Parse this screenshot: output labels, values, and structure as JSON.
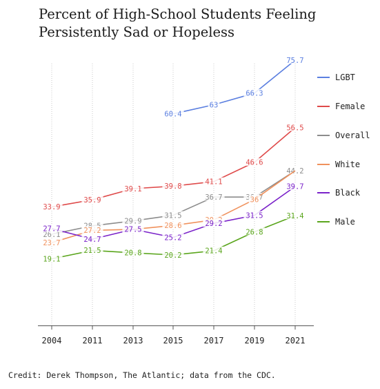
{
  "title": "Percent of High-School Students Feeling Persistently Sad or Hopeless",
  "credit": "Credit: Derek Thompson, The Atlantic; data from the CDC.",
  "chart_data": {
    "type": "line",
    "title": "Percent of High-School Students Feeling Persistently Sad or Hopeless",
    "xlabel": "",
    "ylabel": "",
    "categories": [
      "2004",
      "2011",
      "2013",
      "2015",
      "2017",
      "2019",
      "2021"
    ],
    "ylim": [
      0,
      80
    ],
    "grid": "vertical dotted lines at each year",
    "legend_position": "right",
    "series": [
      {
        "name": "LGBT",
        "color": "#5b7fe0",
        "values": [
          null,
          null,
          null,
          60.4,
          63,
          66.3,
          75.7
        ],
        "labels": [
          null,
          null,
          null,
          "60.4",
          "63",
          "66.3",
          "75.7"
        ]
      },
      {
        "name": "Female",
        "color": "#df4a4a",
        "values": [
          33.9,
          35.9,
          39.1,
          39.8,
          41.1,
          46.6,
          56.5
        ],
        "labels": [
          "33.9",
          "35.9",
          "39.1",
          "39.8",
          "41.1",
          "46.6",
          "56.5"
        ]
      },
      {
        "name": "Overall",
        "color": "#8c8c8c",
        "values": [
          26.1,
          28.5,
          29.9,
          31.5,
          36.7,
          36.7,
          44.2
        ],
        "labels": [
          "26.1",
          "28.5",
          "29.9",
          "31.5",
          "36.7",
          "36.7",
          "44.2"
        ]
      },
      {
        "name": "White",
        "color": "#f0915c",
        "values": [
          23.7,
          27.2,
          27.5,
          28.6,
          30.2,
          36,
          44.2
        ],
        "labels": [
          "23.7",
          "27.2",
          null,
          "28.6",
          "30.2",
          "36",
          null
        ]
      },
      {
        "name": "Black",
        "color": "#7a22c9",
        "values": [
          27.7,
          24.7,
          27.5,
          25.2,
          29.2,
          31.5,
          39.7
        ],
        "labels": [
          "27.7",
          "24.7",
          "27.5",
          "25.2",
          "29.2",
          "31.5",
          "39.7"
        ]
      },
      {
        "name": "Male",
        "color": "#5aa51c",
        "values": [
          19.1,
          21.5,
          20.8,
          20.2,
          21.4,
          26.8,
          31.4
        ],
        "labels": [
          "19.1",
          "21.5",
          "20.8",
          "20.2",
          "21.4",
          "26.8",
          "31.4"
        ]
      }
    ]
  }
}
